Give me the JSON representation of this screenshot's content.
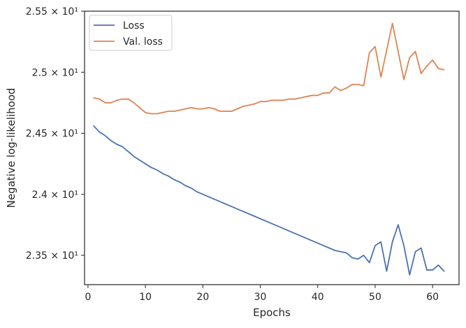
{
  "chart_data": {
    "type": "line",
    "title": "",
    "xlabel": "Epochs",
    "ylabel": "Negative log-likelihood",
    "xlim": [
      -0.6,
      64.6
    ],
    "ylim": [
      23.26,
      25.5
    ],
    "xticks": [
      0,
      10,
      20,
      30,
      40,
      50,
      60
    ],
    "yticks": [
      {
        "value": 23.5,
        "label": "2.35 × 10¹"
      },
      {
        "value": 24.0,
        "label": "2.4 × 10¹"
      },
      {
        "value": 24.5,
        "label": "2.45 × 10¹"
      },
      {
        "value": 25.0,
        "label": "2.5 × 10¹"
      },
      {
        "value": 25.5,
        "label": "2.55 × 10¹"
      }
    ],
    "x": [
      1,
      2,
      3,
      4,
      5,
      6,
      7,
      8,
      9,
      10,
      11,
      12,
      13,
      14,
      15,
      16,
      17,
      18,
      19,
      20,
      21,
      22,
      23,
      24,
      25,
      26,
      27,
      28,
      29,
      30,
      31,
      32,
      33,
      34,
      35,
      36,
      37,
      38,
      39,
      40,
      41,
      42,
      43,
      44,
      45,
      46,
      47,
      48,
      49,
      50,
      51,
      52,
      53,
      54,
      55,
      56,
      57,
      58,
      59,
      60,
      61,
      62
    ],
    "legend_position": "top-left",
    "series": [
      {
        "name": "Loss",
        "color": "#4c72b0",
        "values": [
          24.56,
          24.51,
          24.48,
          24.44,
          24.41,
          24.39,
          24.35,
          24.31,
          24.28,
          24.25,
          24.22,
          24.2,
          24.17,
          24.15,
          24.12,
          24.1,
          24.07,
          24.05,
          24.02,
          24.0,
          23.98,
          23.96,
          23.94,
          23.92,
          23.9,
          23.88,
          23.86,
          23.84,
          23.82,
          23.8,
          23.78,
          23.76,
          23.74,
          23.72,
          23.7,
          23.68,
          23.66,
          23.64,
          23.62,
          23.6,
          23.58,
          23.56,
          23.54,
          23.53,
          23.52,
          23.48,
          23.47,
          23.5,
          23.44,
          23.58,
          23.61,
          23.37,
          23.61,
          23.75,
          23.58,
          23.34,
          23.53,
          23.56,
          23.38,
          23.38,
          23.42,
          23.37
        ]
      },
      {
        "name": "Val. loss",
        "color": "#dd8452",
        "values": [
          24.79,
          24.78,
          24.75,
          24.75,
          24.77,
          24.78,
          24.78,
          24.75,
          24.71,
          24.67,
          24.66,
          24.66,
          24.67,
          24.68,
          24.68,
          24.69,
          24.7,
          24.71,
          24.7,
          24.7,
          24.71,
          24.7,
          24.68,
          24.68,
          24.68,
          24.7,
          24.72,
          24.73,
          24.74,
          24.76,
          24.76,
          24.77,
          24.77,
          24.77,
          24.78,
          24.78,
          24.79,
          24.8,
          24.81,
          24.81,
          24.83,
          24.83,
          24.88,
          24.85,
          24.87,
          24.9,
          24.9,
          24.89,
          25.16,
          25.21,
          24.96,
          25.18,
          25.4,
          25.17,
          24.94,
          25.12,
          25.17,
          24.99,
          25.05,
          25.1,
          25.03,
          25.02
        ]
      }
    ]
  }
}
